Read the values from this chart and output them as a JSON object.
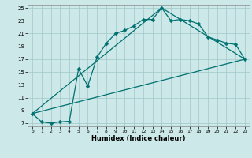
{
  "xlabel": "Humidex (Indice chaleur)",
  "background_color": "#cce8e8",
  "grid_color": "#a0c8c8",
  "line_color": "#007070",
  "xlim": [
    -0.5,
    23.5
  ],
  "ylim": [
    6.5,
    25.5
  ],
  "xticks": [
    0,
    1,
    2,
    3,
    4,
    5,
    6,
    7,
    8,
    9,
    10,
    11,
    12,
    13,
    14,
    15,
    16,
    17,
    18,
    19,
    20,
    21,
    22,
    23
  ],
  "yticks": [
    7,
    9,
    11,
    13,
    15,
    17,
    19,
    21,
    23,
    25
  ],
  "line1_x": [
    0,
    1,
    2,
    3,
    4,
    5,
    6,
    7,
    8,
    9,
    10,
    11,
    12,
    13,
    14,
    15,
    16,
    17,
    18,
    19,
    20,
    21,
    22,
    23
  ],
  "line1_y": [
    8.5,
    7.2,
    7.0,
    7.2,
    7.3,
    15.5,
    12.8,
    17.3,
    19.5,
    21.0,
    21.5,
    22.2,
    23.2,
    23.2,
    25.0,
    23.0,
    23.2,
    23.0,
    22.5,
    20.5,
    20.0,
    19.5,
    19.3,
    17.0
  ],
  "line2_x": [
    0,
    23
  ],
  "line2_y": [
    8.5,
    17.0
  ],
  "line3_x": [
    0,
    14,
    23
  ],
  "line3_y": [
    8.5,
    25.0,
    17.0
  ],
  "marker_size": 2.5,
  "line_width": 0.9
}
